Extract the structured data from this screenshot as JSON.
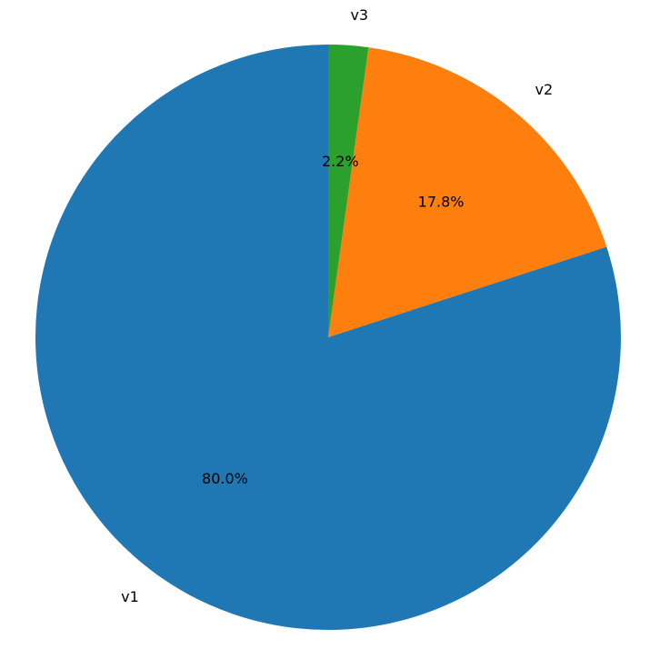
{
  "chart_data": {
    "type": "pie",
    "categories": [
      "v1",
      "v2",
      "v3"
    ],
    "values": [
      80.0,
      17.8,
      2.2
    ],
    "value_labels": [
      "80.0%",
      "17.8%",
      "2.2%"
    ],
    "colors": [
      "#1f77b4",
      "#ff7f0e",
      "#2ca02c"
    ],
    "start_angle_deg": 90,
    "direction": "counterclockwise",
    "title": "",
    "legend": "none"
  }
}
